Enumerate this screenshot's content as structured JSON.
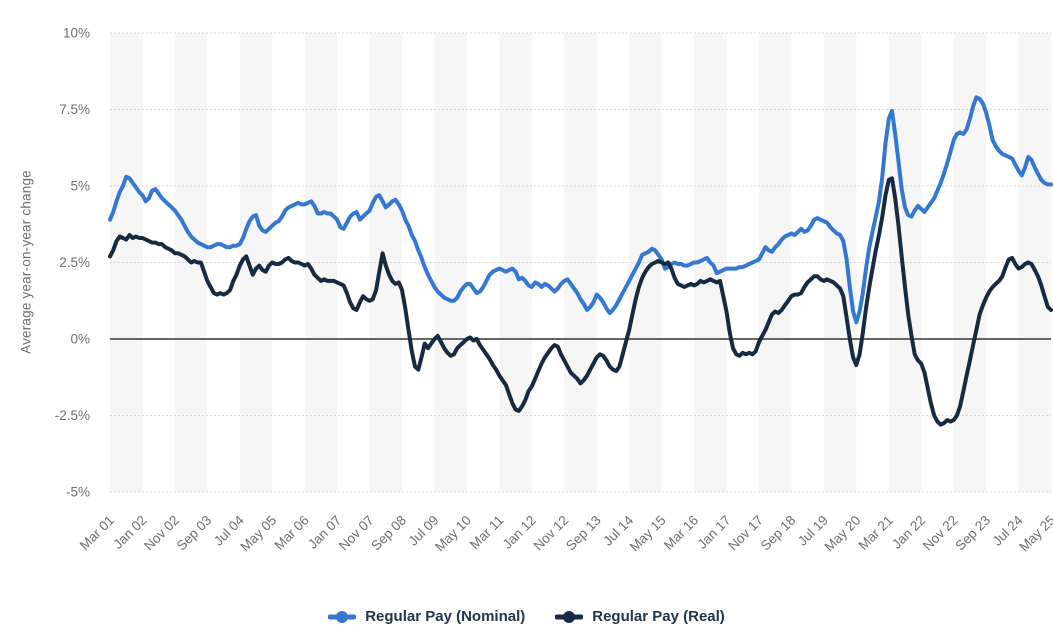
{
  "page": {
    "background": "#ffffff"
  },
  "y_axis": {
    "title": "Average year-on-year change"
  },
  "styles": {
    "band_color": "#f6f6f6",
    "grid_color": "#c9c9c9",
    "zero_line_color": "#333333",
    "tick_text_color": "#6f6f6f",
    "legend_text_color": "#24344a"
  },
  "legend": {
    "items": [
      {
        "label": "Regular Pay (Nominal)",
        "color": "#3478d4"
      },
      {
        "label": "Regular Pay (Real)",
        "color": "#172a42"
      }
    ]
  },
  "chart_data": {
    "type": "line",
    "title": "",
    "xlabel": "",
    "ylabel": "Average year-on-year change",
    "ylim": [
      -5,
      10
    ],
    "grid": "dotted horizontal gridlines, alternating vertical background bands",
    "legend_position": "bottom",
    "zero_line": true,
    "x_unit": "months since Mar 2001 (monthly data, Mar 2001 - May 2025)",
    "x_total_months": 290,
    "y_ticks": [
      {
        "label": "10%",
        "value": 10
      },
      {
        "label": "7.5%",
        "value": 7.5
      },
      {
        "label": "5%",
        "value": 5
      },
      {
        "label": "2.5%",
        "value": 2.5
      },
      {
        "label": "0%",
        "value": 0
      },
      {
        "label": "-2.5%",
        "value": -2.5
      },
      {
        "label": "-5%",
        "value": -5
      }
    ],
    "x_tick_months": [
      0,
      10,
      20,
      30,
      40,
      50,
      60,
      70,
      80,
      90,
      100,
      110,
      120,
      130,
      140,
      150,
      160,
      170,
      180,
      190,
      200,
      210,
      220,
      230,
      240,
      250,
      260,
      270,
      280,
      290
    ],
    "x_tick_labels": [
      "Mar 01",
      "Jan 02",
      "Nov 02",
      "Sep 03",
      "Jul 04",
      "May 05",
      "Mar 06",
      "Jan 07",
      "Nov 07",
      "Sep 08",
      "Jul 09",
      "May 10",
      "Mar 11",
      "Jan 12",
      "Nov 12",
      "Sep 13",
      "Jul 14",
      "May 15",
      "Mar 16",
      "Jan 17",
      "Nov 17",
      "Sep 18",
      "Jul 19",
      "May 20",
      "Mar 21",
      "Jan 22",
      "Nov 22",
      "Sep 23",
      "Jul 24",
      "May 25"
    ],
    "series": [
      {
        "name": "Regular Pay (Nominal)",
        "color": "#3478d4",
        "values": [
          3.9,
          4.15,
          4.5,
          4.8,
          5.0,
          5.3,
          5.25,
          5.1,
          4.95,
          4.8,
          4.7,
          4.5,
          4.6,
          4.85,
          4.9,
          4.75,
          4.6,
          4.5,
          4.4,
          4.3,
          4.2,
          4.05,
          3.9,
          3.7,
          3.5,
          3.35,
          3.25,
          3.15,
          3.1,
          3.05,
          3.0,
          3.0,
          3.05,
          3.1,
          3.1,
          3.05,
          3.0,
          3.0,
          3.05,
          3.05,
          3.1,
          3.3,
          3.6,
          3.85,
          4.0,
          4.05,
          3.7,
          3.55,
          3.5,
          3.6,
          3.7,
          3.8,
          3.85,
          4.0,
          4.2,
          4.3,
          4.35,
          4.4,
          4.45,
          4.4,
          4.4,
          4.45,
          4.5,
          4.35,
          4.1,
          4.1,
          4.15,
          4.1,
          4.1,
          4.0,
          3.9,
          3.65,
          3.6,
          3.8,
          4.0,
          4.1,
          4.15,
          3.9,
          4.0,
          4.1,
          4.2,
          4.45,
          4.65,
          4.7,
          4.5,
          4.3,
          4.4,
          4.5,
          4.55,
          4.4,
          4.2,
          3.9,
          3.7,
          3.4,
          3.2,
          2.9,
          2.65,
          2.35,
          2.1,
          1.9,
          1.7,
          1.55,
          1.45,
          1.35,
          1.3,
          1.25,
          1.25,
          1.35,
          1.55,
          1.7,
          1.8,
          1.8,
          1.65,
          1.5,
          1.55,
          1.7,
          1.9,
          2.1,
          2.2,
          2.25,
          2.3,
          2.25,
          2.2,
          2.25,
          2.3,
          2.2,
          1.95,
          2.0,
          1.9,
          1.75,
          1.7,
          1.85,
          1.8,
          1.7,
          1.8,
          1.75,
          1.65,
          1.55,
          1.65,
          1.8,
          1.9,
          1.95,
          1.8,
          1.65,
          1.5,
          1.3,
          1.15,
          0.95,
          1.05,
          1.2,
          1.45,
          1.35,
          1.2,
          1.0,
          0.85,
          0.95,
          1.1,
          1.3,
          1.5,
          1.7,
          1.9,
          2.1,
          2.3,
          2.5,
          2.75,
          2.8,
          2.85,
          2.95,
          2.9,
          2.75,
          2.6,
          2.3,
          2.35,
          2.45,
          2.5,
          2.45,
          2.45,
          2.4,
          2.4,
          2.45,
          2.5,
          2.5,
          2.55,
          2.6,
          2.65,
          2.5,
          2.4,
          2.15,
          2.2,
          2.25,
          2.3,
          2.3,
          2.3,
          2.3,
          2.35,
          2.35,
          2.4,
          2.45,
          2.5,
          2.55,
          2.6,
          2.8,
          3.0,
          2.9,
          2.85,
          3.0,
          3.1,
          3.25,
          3.35,
          3.4,
          3.45,
          3.4,
          3.5,
          3.6,
          3.5,
          3.55,
          3.7,
          3.9,
          3.95,
          3.9,
          3.85,
          3.8,
          3.65,
          3.55,
          3.45,
          3.4,
          3.2,
          2.6,
          1.7,
          0.9,
          0.55,
          0.9,
          1.5,
          2.3,
          3.0,
          3.5,
          4.0,
          4.5,
          5.3,
          6.4,
          7.2,
          7.45,
          6.7,
          5.8,
          4.9,
          4.3,
          4.05,
          4.0,
          4.2,
          4.35,
          4.25,
          4.15,
          4.3,
          4.45,
          4.6,
          4.85,
          5.1,
          5.4,
          5.75,
          6.1,
          6.5,
          6.7,
          6.75,
          6.7,
          6.85,
          7.2,
          7.6,
          7.9,
          7.85,
          7.7,
          7.4,
          7.0,
          6.5,
          6.3,
          6.15,
          6.05,
          6.0,
          5.95,
          5.9,
          5.7,
          5.5,
          5.35,
          5.6,
          5.95,
          5.85,
          5.6,
          5.4,
          5.2,
          5.1,
          5.05,
          5.05
        ]
      },
      {
        "name": "Regular Pay (Real)",
        "color": "#172a42",
        "values": [
          2.7,
          2.9,
          3.2,
          3.35,
          3.3,
          3.25,
          3.4,
          3.3,
          3.35,
          3.3,
          3.3,
          3.25,
          3.2,
          3.15,
          3.15,
          3.1,
          3.1,
          3.0,
          2.95,
          2.9,
          2.8,
          2.8,
          2.75,
          2.7,
          2.6,
          2.5,
          2.55,
          2.5,
          2.5,
          2.2,
          1.9,
          1.7,
          1.5,
          1.45,
          1.5,
          1.45,
          1.5,
          1.6,
          1.9,
          2.1,
          2.4,
          2.6,
          2.7,
          2.4,
          2.1,
          2.3,
          2.4,
          2.25,
          2.2,
          2.4,
          2.5,
          2.45,
          2.45,
          2.5,
          2.6,
          2.65,
          2.55,
          2.5,
          2.5,
          2.45,
          2.4,
          2.45,
          2.3,
          2.1,
          2.0,
          1.9,
          1.95,
          1.9,
          1.9,
          1.9,
          1.85,
          1.8,
          1.75,
          1.5,
          1.2,
          1.0,
          0.95,
          1.2,
          1.4,
          1.3,
          1.25,
          1.3,
          1.6,
          2.2,
          2.8,
          2.4,
          2.1,
          1.9,
          1.8,
          1.85,
          1.6,
          1.0,
          0.3,
          -0.4,
          -0.9,
          -1.0,
          -0.6,
          -0.15,
          -0.3,
          -0.15,
          0.0,
          0.1,
          -0.1,
          -0.3,
          -0.45,
          -0.55,
          -0.5,
          -0.3,
          -0.2,
          -0.1,
          0.0,
          0.05,
          -0.05,
          0.0,
          -0.2,
          -0.35,
          -0.5,
          -0.65,
          -0.85,
          -1.0,
          -1.2,
          -1.35,
          -1.5,
          -1.8,
          -2.1,
          -2.3,
          -2.35,
          -2.2,
          -2.0,
          -1.7,
          -1.55,
          -1.3,
          -1.05,
          -0.8,
          -0.6,
          -0.45,
          -0.3,
          -0.2,
          -0.25,
          -0.5,
          -0.7,
          -0.9,
          -1.1,
          -1.2,
          -1.3,
          -1.45,
          -1.35,
          -1.2,
          -1.0,
          -0.8,
          -0.6,
          -0.5,
          -0.55,
          -0.7,
          -0.9,
          -1.0,
          -1.05,
          -0.9,
          -0.5,
          -0.1,
          0.3,
          0.8,
          1.3,
          1.7,
          2.0,
          2.2,
          2.35,
          2.45,
          2.5,
          2.55,
          2.5,
          2.45,
          2.5,
          2.3,
          2.0,
          1.8,
          1.75,
          1.7,
          1.75,
          1.8,
          1.75,
          1.8,
          1.9,
          1.85,
          1.9,
          1.95,
          1.9,
          1.85,
          1.9,
          1.4,
          0.9,
          0.2,
          -0.3,
          -0.5,
          -0.55,
          -0.45,
          -0.5,
          -0.45,
          -0.5,
          -0.4,
          -0.1,
          0.1,
          0.3,
          0.55,
          0.8,
          0.9,
          0.85,
          0.95,
          1.1,
          1.25,
          1.4,
          1.45,
          1.45,
          1.5,
          1.7,
          1.85,
          1.95,
          2.05,
          2.05,
          1.95,
          1.9,
          1.95,
          1.9,
          1.85,
          1.75,
          1.65,
          1.4,
          0.7,
          0.0,
          -0.6,
          -0.85,
          -0.5,
          0.2,
          1.0,
          1.7,
          2.3,
          2.9,
          3.4,
          4.0,
          4.7,
          5.2,
          5.25,
          4.6,
          3.7,
          2.7,
          1.7,
          0.8,
          0.1,
          -0.5,
          -0.7,
          -0.8,
          -1.1,
          -1.6,
          -2.1,
          -2.5,
          -2.7,
          -2.8,
          -2.75,
          -2.65,
          -2.7,
          -2.65,
          -2.5,
          -2.2,
          -1.7,
          -1.2,
          -0.7,
          -0.2,
          0.3,
          0.8,
          1.1,
          1.35,
          1.55,
          1.7,
          1.8,
          1.9,
          2.05,
          2.35,
          2.6,
          2.65,
          2.45,
          2.3,
          2.35,
          2.45,
          2.5,
          2.45,
          2.25,
          2.05,
          1.75,
          1.4,
          1.05,
          0.95
        ]
      }
    ]
  }
}
